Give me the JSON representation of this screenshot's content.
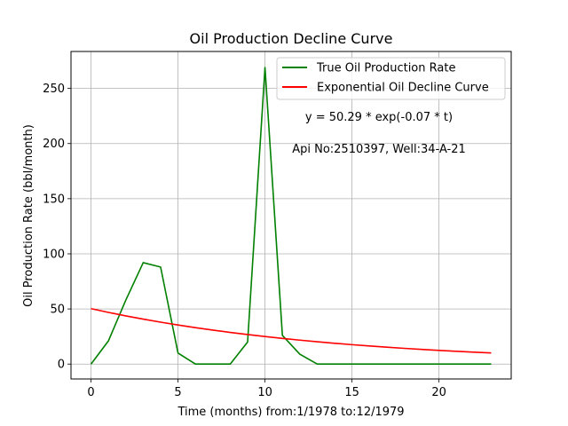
{
  "chart_data": {
    "type": "line",
    "title": "Oil Production Decline Curve",
    "xlabel": "Time (months) from:1/1978 to:12/1979",
    "ylabel": "Oil Production Rate (bbl/month)",
    "xlim": [
      -1.15,
      24.15
    ],
    "ylim": [
      -13.5,
      283.5
    ],
    "x_ticks": [
      0,
      5,
      10,
      15,
      20
    ],
    "y_ticks": [
      0,
      50,
      100,
      150,
      200,
      250
    ],
    "grid": true,
    "legend_position": "upper right",
    "series": [
      {
        "name": "True Oil Production Rate",
        "color": "#008000",
        "x": [
          0,
          1,
          2,
          3,
          4,
          5,
          6,
          7,
          8,
          9,
          10,
          11,
          12,
          13,
          14,
          15,
          16,
          17,
          18,
          19,
          20,
          21,
          22,
          23
        ],
        "y": [
          0,
          21,
          58,
          92,
          88,
          10,
          0,
          0,
          0,
          20,
          269,
          26,
          9,
          0,
          0,
          0,
          0,
          0,
          0,
          0,
          0,
          0,
          0,
          0
        ]
      },
      {
        "name": "Exponential Oil Decline Curve",
        "color": "#ff0000",
        "x": [
          0,
          1,
          2,
          3,
          4,
          5,
          6,
          7,
          8,
          9,
          10,
          11,
          12,
          13,
          14,
          15,
          16,
          17,
          18,
          19,
          20,
          21,
          22,
          23
        ],
        "y": [
          50.29,
          46.89,
          43.72,
          40.77,
          38.01,
          35.44,
          33.05,
          30.81,
          28.73,
          26.79,
          24.97,
          23.29,
          21.71,
          20.25,
          18.88,
          17.6,
          16.41,
          15.3,
          14.27,
          13.3,
          12.4,
          11.57,
          10.78,
          10.06
        ]
      }
    ],
    "annotations": [
      "y = 50.29 * exp(-0.07 * t)",
      "Api No:2510397, Well:34-A-21"
    ]
  }
}
